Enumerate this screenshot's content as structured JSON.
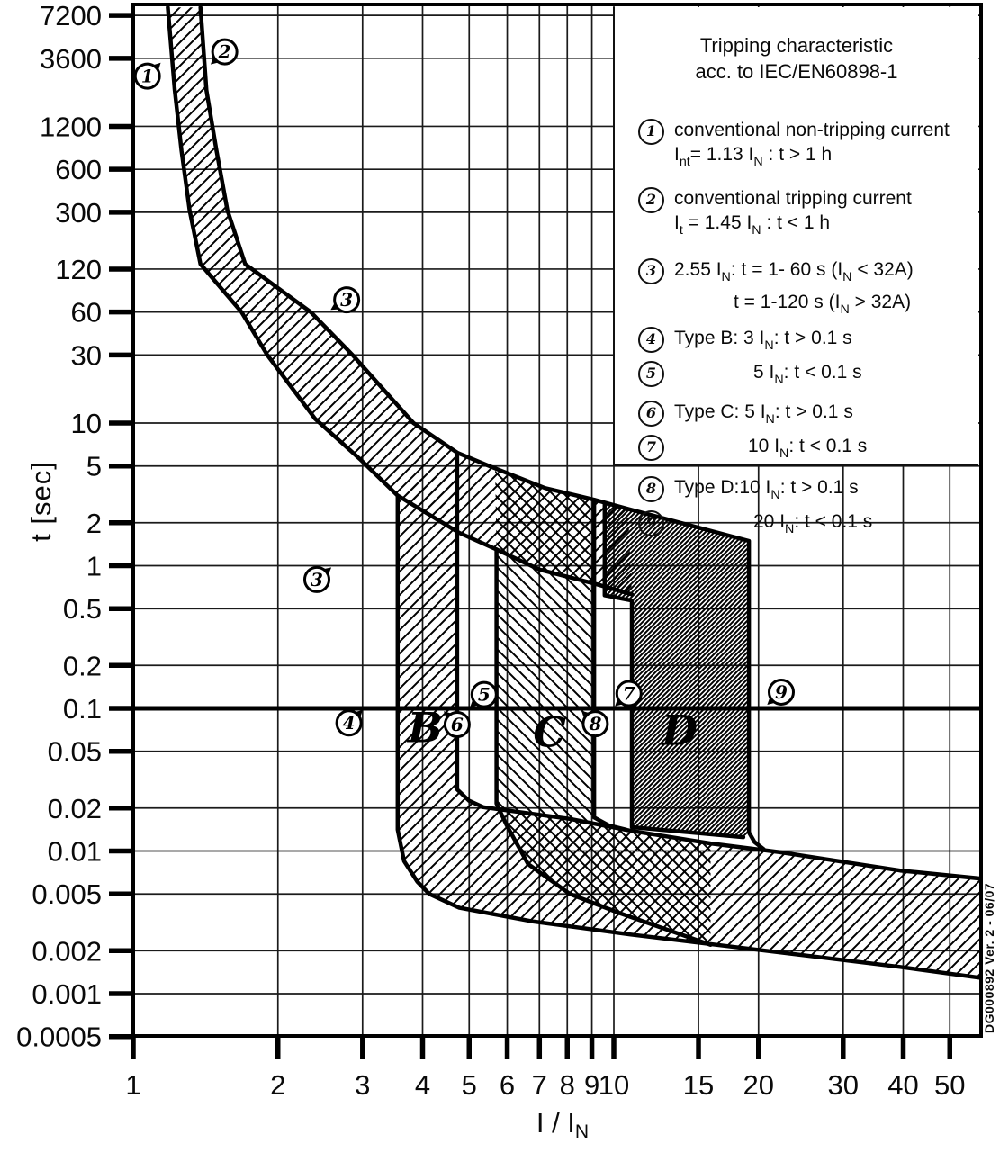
{
  "watermark": "DG000892 Ver. 2 - 06/07",
  "legend": {
    "title_lines": [
      "Tripping characteristic",
      "acc. to IEC/EN60898-1"
    ],
    "items": [
      {
        "num": "1",
        "lines": [
          {
            "indent": 0,
            "segments": [
              {
                "t": "conventional non-tripping current"
              }
            ]
          },
          {
            "indent": 0,
            "segments": [
              {
                "t": "I"
              },
              {
                "s": "nt"
              },
              {
                "t": "= 1.13 I"
              },
              {
                "s": "N"
              },
              {
                "t": " : t > 1 h"
              }
            ]
          }
        ]
      },
      {
        "num": "2",
        "lines": [
          {
            "indent": 0,
            "segments": [
              {
                "t": "conventional tripping current"
              }
            ]
          },
          {
            "indent": 0,
            "segments": [
              {
                "t": "I"
              },
              {
                "s": "t"
              },
              {
                "t": " = 1.45 I"
              },
              {
                "s": "N"
              },
              {
                "t": " : t < 1 h"
              }
            ]
          }
        ]
      },
      {
        "num": "3",
        "lines": [
          {
            "indent": 0,
            "segments": [
              {
                "t": "2.55 I"
              },
              {
                "s": "N"
              },
              {
                "t": ": t = 1- 60 s (I"
              },
              {
                "s": "N"
              },
              {
                "t": " < 32A)"
              }
            ]
          },
          {
            "indent": 1,
            "segments": [
              {
                "t": "t = 1-120 s (I"
              },
              {
                "s": "N"
              },
              {
                "t": " > 32A)"
              }
            ]
          }
        ]
      },
      {
        "num": "4",
        "lines": [
          {
            "indent": 0,
            "segments": [
              {
                "t": "Type B: 3 I"
              },
              {
                "s": "N"
              },
              {
                "t": ": t > 0.1 s"
              }
            ]
          }
        ]
      },
      {
        "num": "5",
        "lines": [
          {
            "indent": 2,
            "segments": [
              {
                "t": "5 I"
              },
              {
                "s": "N"
              },
              {
                "t": ": t < 0.1 s"
              }
            ]
          }
        ]
      },
      {
        "num": "6",
        "lines": [
          {
            "indent": 0,
            "segments": [
              {
                "t": "Type C: 5 I"
              },
              {
                "s": "N"
              },
              {
                "t": ": t > 0.1 s"
              }
            ]
          }
        ]
      },
      {
        "num": "7",
        "lines": [
          {
            "indent": 3,
            "segments": [
              {
                "t": "10 I"
              },
              {
                "s": "N"
              },
              {
                "t": ": t < 0.1 s"
              }
            ]
          }
        ]
      },
      {
        "num": "8",
        "lines": [
          {
            "indent": 0,
            "segments": [
              {
                "t": "Type D:10 I"
              },
              {
                "s": "N"
              },
              {
                "t": ": t > 0.1 s"
              }
            ]
          }
        ]
      },
      {
        "num": "9",
        "lines": [
          {
            "indent": 2,
            "segments": [
              {
                "t": "20 I"
              },
              {
                "s": "N"
              },
              {
                "t": ": t < 0.1 s"
              }
            ]
          }
        ]
      }
    ]
  },
  "chart_data": {
    "type": "area",
    "title": "Tripping characteristic acc. to IEC/EN60898-1",
    "x_axis": {
      "label": "I / I_N",
      "label_segments": [
        {
          "t": "I / I"
        },
        {
          "s": "N"
        }
      ],
      "scale": "log",
      "min": 1,
      "max": 58,
      "ticks": [
        1,
        2,
        3,
        4,
        5,
        6,
        7,
        8,
        9,
        10,
        15,
        20,
        30,
        40,
        50
      ]
    },
    "y_axis": {
      "label": "t [sec]",
      "scale": "log",
      "min": 0.0005,
      "max": 8200,
      "ticks": [
        7200,
        3600,
        1200,
        600,
        300,
        120,
        60,
        30,
        10,
        5,
        2,
        1,
        0.5,
        0.2,
        0.1,
        0.05,
        0.02,
        0.01,
        0.005,
        0.002,
        0.001,
        0.0005
      ]
    },
    "emphasis_line_t": 0.1,
    "grid": true,
    "legend_position": "top-right",
    "bands": [
      {
        "name": "thermal-band",
        "hatch": "fwd",
        "points": [
          [
            1.18,
            8200
          ],
          [
            1.22,
            2150
          ],
          [
            1.26,
            810
          ],
          [
            1.31,
            310
          ],
          [
            1.38,
            130
          ],
          [
            1.68,
            60
          ],
          [
            1.9,
            30
          ],
          [
            2.39,
            10.7
          ],
          [
            2.96,
            5.6
          ],
          [
            3.55,
            3.1
          ],
          [
            4.77,
            1.7
          ],
          [
            5.7,
            1.3
          ],
          [
            7.0,
            0.94
          ],
          [
            9.1,
            0.75
          ],
          [
            10.9,
            0.63
          ],
          [
            10.7,
            2.5
          ],
          [
            9.1,
            2.9
          ],
          [
            7.2,
            3.5
          ],
          [
            5.5,
            5.0
          ],
          [
            4.72,
            6.2
          ],
          [
            3.83,
            10
          ],
          [
            2.86,
            30
          ],
          [
            2.34,
            60
          ],
          [
            1.71,
            130
          ],
          [
            1.57,
            310
          ],
          [
            1.49,
            810
          ],
          [
            1.42,
            2150
          ],
          [
            1.38,
            8200
          ]
        ]
      },
      {
        "name": "type-b-band",
        "hatch": "fwd",
        "points": [
          [
            3.55,
            3.1
          ],
          [
            4.72,
            6.2
          ],
          [
            4.72,
            0.027
          ],
          [
            5.0,
            0.0225
          ],
          [
            5.35,
            0.0203
          ],
          [
            8.1,
            0.0168
          ],
          [
            10.8,
            0.0139
          ],
          [
            15.9,
            0.0113
          ],
          [
            22.2,
            0.0098
          ],
          [
            39.4,
            0.0073
          ],
          [
            58.1,
            0.0064
          ],
          [
            58.1,
            0.00129
          ],
          [
            39.4,
            0.00154
          ],
          [
            20.7,
            0.002
          ],
          [
            10.8,
            0.0026
          ],
          [
            6.81,
            0.0032
          ],
          [
            4.77,
            0.004
          ],
          [
            4.13,
            0.005
          ],
          [
            3.9,
            0.0061
          ],
          [
            3.66,
            0.0085
          ],
          [
            3.55,
            0.0141
          ]
        ]
      },
      {
        "name": "type-c-band",
        "hatch": "back",
        "points": [
          [
            5.66,
            4.9
          ],
          [
            7.2,
            3.5
          ],
          [
            9.1,
            2.9
          ],
          [
            9.1,
            0.0172
          ],
          [
            9.76,
            0.0151
          ],
          [
            10.6,
            0.0141
          ],
          [
            15.9,
            0.0113
          ],
          [
            15.9,
            0.0022
          ],
          [
            10.2,
            0.0037
          ],
          [
            8.1,
            0.005
          ],
          [
            6.63,
            0.0081
          ],
          [
            5.98,
            0.0152
          ],
          [
            5.7,
            0.0215
          ],
          [
            5.7,
            1.3
          ]
        ]
      },
      {
        "name": "type-d-band",
        "hatch": "dense",
        "points": [
          [
            9.57,
            2.7
          ],
          [
            19.1,
            1.49
          ],
          [
            19.1,
            0.0135
          ],
          [
            18.6,
            0.0125
          ],
          [
            10.9,
            0.0147
          ],
          [
            10.9,
            0.57
          ],
          [
            9.57,
            0.62
          ]
        ]
      }
    ],
    "stroked_paths": [
      {
        "name": "thermal-left-boundary",
        "points": [
          [
            1.18,
            8200
          ],
          [
            1.22,
            2150
          ],
          [
            1.26,
            810
          ],
          [
            1.31,
            310
          ],
          [
            1.38,
            130
          ],
          [
            1.68,
            60
          ],
          [
            1.9,
            30
          ],
          [
            2.39,
            10.7
          ],
          [
            2.96,
            5.6
          ],
          [
            3.55,
            3.1
          ],
          [
            4.77,
            1.7
          ],
          [
            5.7,
            1.3
          ],
          [
            7.0,
            0.94
          ],
          [
            9.1,
            0.75
          ],
          [
            10.9,
            0.63
          ]
        ]
      },
      {
        "name": "thermal-right-and-type-d-boundary",
        "points": [
          [
            1.38,
            8200
          ],
          [
            1.42,
            2150
          ],
          [
            1.49,
            810
          ],
          [
            1.57,
            310
          ],
          [
            1.71,
            130
          ],
          [
            2.34,
            60
          ],
          [
            2.86,
            30
          ],
          [
            3.83,
            10
          ],
          [
            4.72,
            6.2
          ],
          [
            5.5,
            5.0
          ],
          [
            7.2,
            3.5
          ],
          [
            9.1,
            2.9
          ],
          [
            10.7,
            2.5
          ],
          [
            19.1,
            1.49
          ],
          [
            19.1,
            0.0135
          ],
          [
            19.6,
            0.0116
          ],
          [
            20.5,
            0.0103
          ]
        ]
      },
      {
        "name": "type-b-inner-boundary",
        "points": [
          [
            4.72,
            6.2
          ],
          [
            4.72,
            0.027
          ],
          [
            5.0,
            0.0225
          ],
          [
            5.35,
            0.0203
          ],
          [
            8.1,
            0.0168
          ],
          [
            10.8,
            0.0139
          ],
          [
            15.9,
            0.0113
          ],
          [
            22.2,
            0.0098
          ],
          [
            39.4,
            0.0073
          ],
          [
            58.1,
            0.0064
          ]
        ]
      },
      {
        "name": "type-b-outer-boundary",
        "points": [
          [
            3.55,
            3.1
          ],
          [
            3.55,
            0.0141
          ],
          [
            3.66,
            0.0085
          ],
          [
            3.9,
            0.0061
          ],
          [
            4.13,
            0.005
          ],
          [
            4.77,
            0.004
          ],
          [
            6.81,
            0.0032
          ],
          [
            10.8,
            0.0026
          ],
          [
            20.7,
            0.002
          ],
          [
            39.4,
            0.00154
          ],
          [
            58.1,
            0.00129
          ]
        ]
      },
      {
        "name": "type-c-left-boundary",
        "points": [
          [
            5.7,
            1.3
          ],
          [
            5.7,
            0.0215
          ],
          [
            5.98,
            0.0152
          ],
          [
            6.63,
            0.0081
          ],
          [
            8.1,
            0.005
          ],
          [
            10.2,
            0.0037
          ],
          [
            15.9,
            0.0022
          ]
        ]
      },
      {
        "name": "type-c-right-boundary",
        "points": [
          [
            9.1,
            2.9
          ],
          [
            9.1,
            0.0172
          ],
          [
            9.76,
            0.0151
          ],
          [
            10.6,
            0.0141
          ]
        ]
      },
      {
        "name": "type-d-left-boundary",
        "points": [
          [
            9.57,
            2.7
          ],
          [
            9.57,
            0.62
          ],
          [
            10.9,
            0.57
          ],
          [
            10.9,
            0.0147
          ],
          [
            18.6,
            0.0125
          ]
        ]
      }
    ],
    "band_letters": [
      {
        "text": "B",
        "I": 4.05,
        "t": 0.073
      },
      {
        "text": "C",
        "I": 7.35,
        "t": 0.068
      },
      {
        "text": "D",
        "I": 13.7,
        "t": 0.07
      }
    ],
    "markers": [
      {
        "label": "1",
        "I": 1.07,
        "t": 2700,
        "angle": 45
      },
      {
        "label": "2",
        "I": 1.55,
        "t": 4000,
        "angle": 222
      },
      {
        "label": "3",
        "I": 2.78,
        "t": 73,
        "angle": 212
      },
      {
        "label": "3",
        "I": 2.41,
        "t": 0.8,
        "angle": 40
      },
      {
        "label": "4",
        "I": 2.81,
        "t": 0.079,
        "angle": 43
      },
      {
        "label": "5",
        "I": 5.37,
        "t": 0.125,
        "angle": 222
      },
      {
        "label": "6",
        "I": 4.72,
        "t": 0.077,
        "angle": 135
      },
      {
        "label": "7",
        "I": 10.75,
        "t": 0.127,
        "angle": 222
      },
      {
        "label": "8",
        "I": 9.15,
        "t": 0.078,
        "angle": 137
      },
      {
        "label": "9",
        "I": 22.3,
        "t": 0.13,
        "angle": 222
      }
    ]
  }
}
